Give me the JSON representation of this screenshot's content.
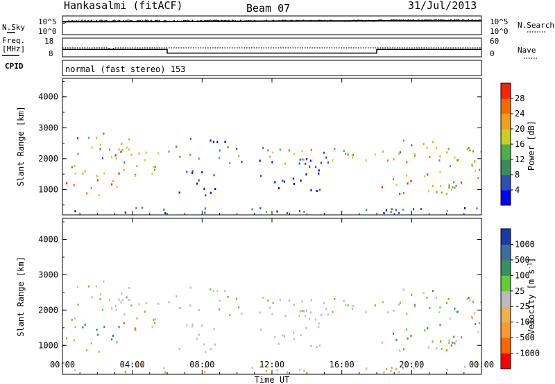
{
  "header": {
    "station": "Hankasalmi (fitACF)",
    "beam": "Beam 07",
    "date": "31/Jul/2013"
  },
  "left_labels": {
    "nsky": "N.Sky",
    "freq": "Freq.",
    "freq_unit": "[MHz]",
    "cpid": "CPID"
  },
  "right_labels": {
    "nsearch": "N.Search",
    "nave": "Nave"
  },
  "cpid_text": "normal (fast stereo) 153",
  "colors": {
    "power": [
      "#0000ff",
      "#2c50b4",
      "#3c8c5a",
      "#4caf50",
      "#c8d21e",
      "#f0a01e",
      "#ff6a00",
      "#ff2000"
    ],
    "velocity": [
      "#ff0000",
      "#ff6600",
      "#ff9933",
      "#f0b050",
      "#bbbbbb",
      "#66cc33",
      "#3a8f5e",
      "#3c6e9e",
      "#1a3aa8"
    ],
    "noise_line": "#000000"
  },
  "chart_data": [
    {
      "type": "line",
      "panel": "noise",
      "series": [
        {
          "name": "N.Sky",
          "x": [
            0,
            0.5,
            6,
            18,
            24
          ],
          "y": [
            2800,
            3000,
            3200,
            5000,
            4800
          ]
        }
      ],
      "ylabels": [
        "10^5",
        "10^0"
      ],
      "right_ylabels": [
        "10^5",
        "10^0"
      ]
    },
    {
      "type": "line",
      "panel": "freq_nave",
      "freq_ylabels": [
        "18",
        "8"
      ],
      "nave_ylabels": [
        "60",
        "0"
      ],
      "series": [
        {
          "x": [
            0,
            6,
            6,
            18,
            18,
            24
          ],
          "y": [
            12.0,
            12.0,
            10.0,
            10.0,
            12.0,
            12.0
          ]
        },
        {
          "x": [
            0,
            2.6,
            2.8,
            3.0,
            24
          ],
          "y": [
            12.8,
            12.8,
            12.0,
            12.8,
            12.8
          ]
        }
      ]
    },
    {
      "type": "heatmap",
      "panel": "power",
      "ylabel": "Slant Range [km]",
      "yticks": [
        "4000",
        "3000",
        "2000",
        "1000"
      ],
      "ylim": [
        180,
        4600
      ],
      "xlim": [
        0,
        24
      ],
      "colorbar_title": "Power [dB]",
      "colorbar_ticks": [
        "28",
        "24",
        "20",
        "16",
        "12",
        "8",
        "4"
      ]
    },
    {
      "type": "heatmap",
      "panel": "velocity",
      "ylabel": "Slant Range [km]",
      "yticks": [
        "4000",
        "3000",
        "2000",
        "1000"
      ],
      "ylim": [
        180,
        4600
      ],
      "xlim": [
        0,
        24
      ],
      "colorbar_title": "Velocity [m s^-1]",
      "colorbar_ticks": [
        "1000",
        "500",
        "100",
        "25",
        "-25",
        "-100",
        "-500",
        "-1000"
      ]
    }
  ],
  "xaxis": {
    "ticks": [
      "00:00",
      "04:00",
      "08:00",
      "12:00",
      "16:00",
      "20:00",
      "00:00"
    ],
    "label": "Time UT"
  }
}
